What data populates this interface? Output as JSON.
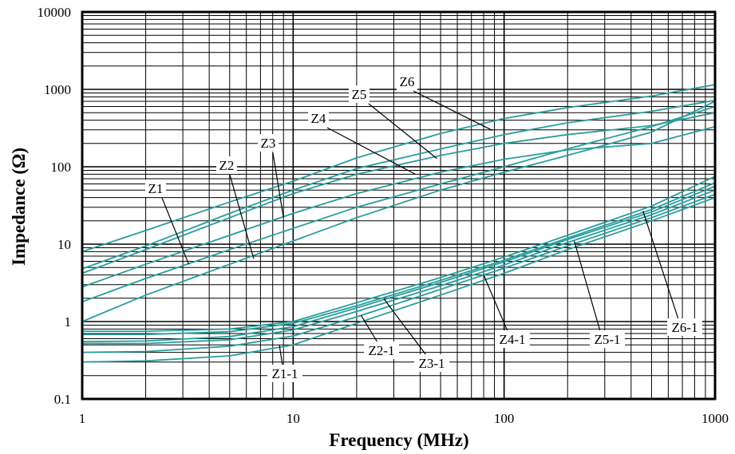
{
  "chart_data": {
    "type": "line",
    "title": "",
    "xlabel": "Frequency (MHz)",
    "ylabel": "Impedance (Ω)",
    "x_scale": "log",
    "y_scale": "log",
    "xlim": [
      1,
      1000
    ],
    "ylim": [
      0.1,
      10000
    ],
    "x_ticks": [
      "1",
      "10",
      "100",
      "1000"
    ],
    "y_ticks": [
      "0.1",
      "1",
      "10",
      "100",
      "1000",
      "10000"
    ],
    "grid": true,
    "line_color": "#2a9d9d",
    "series": [
      {
        "name": "Z1",
        "x": [
          1,
          2,
          5,
          10,
          20,
          50,
          100,
          200,
          500,
          1000
        ],
        "y": [
          1.0,
          2.2,
          5.5,
          11,
          22,
          50,
          85,
          140,
          280,
          700
        ]
      },
      {
        "name": "Z2",
        "x": [
          1,
          2,
          5,
          10,
          20,
          50,
          100,
          200,
          500,
          1000
        ],
        "y": [
          1.8,
          3.6,
          8.5,
          16,
          30,
          60,
          100,
          170,
          330,
          600
        ]
      },
      {
        "name": "Z3",
        "x": [
          1,
          2,
          5,
          10,
          20,
          50,
          100,
          200,
          500,
          1000
        ],
        "y": [
          2.8,
          5.5,
          13,
          25,
          45,
          85,
          125,
          165,
          200,
          330
        ]
      },
      {
        "name": "Z4",
        "x": [
          1,
          2,
          5,
          10,
          20,
          50,
          100,
          200,
          500,
          1000
        ],
        "y": [
          4.2,
          8.5,
          22,
          45,
          80,
          140,
          200,
          260,
          340,
          500
        ]
      },
      {
        "name": "Z5",
        "x": [
          1,
          2,
          5,
          10,
          20,
          50,
          100,
          200,
          500,
          1000
        ],
        "y": [
          4.8,
          9.5,
          25,
          50,
          95,
          170,
          260,
          370,
          520,
          720
        ]
      },
      {
        "name": "Z6",
        "x": [
          1,
          2,
          5,
          10,
          20,
          50,
          100,
          200,
          500,
          1000
        ],
        "y": [
          8.0,
          15,
          35,
          65,
          130,
          270,
          420,
          580,
          820,
          1150
        ]
      },
      {
        "name": "Z1-1",
        "x": [
          1,
          2,
          5,
          10,
          20,
          50,
          100,
          200,
          500,
          1000
        ],
        "y": [
          0.3,
          0.31,
          0.36,
          0.5,
          0.95,
          2.2,
          4.2,
          8.5,
          20,
          40
        ]
      },
      {
        "name": "Z2-1",
        "x": [
          1,
          2,
          5,
          10,
          20,
          50,
          100,
          200,
          500,
          1000
        ],
        "y": [
          0.4,
          0.41,
          0.48,
          0.65,
          1.15,
          2.6,
          4.9,
          9.5,
          22,
          44
        ]
      },
      {
        "name": "Z3-1",
        "x": [
          1,
          2,
          5,
          10,
          20,
          50,
          100,
          200,
          500,
          1000
        ],
        "y": [
          0.52,
          0.52,
          0.58,
          0.78,
          1.35,
          2.9,
          5.4,
          10.5,
          24,
          50
        ]
      },
      {
        "name": "Z4-1",
        "x": [
          1,
          2,
          5,
          10,
          20,
          50,
          100,
          200,
          500,
          1000
        ],
        "y": [
          0.55,
          0.56,
          0.64,
          0.86,
          1.5,
          3.2,
          5.9,
          11.5,
          26,
          56
        ]
      },
      {
        "name": "Z5-1",
        "x": [
          1,
          2,
          5,
          10,
          20,
          50,
          100,
          200,
          500,
          1000
        ],
        "y": [
          0.68,
          0.68,
          0.74,
          0.95,
          1.6,
          3.4,
          6.2,
          12,
          28,
          62
        ]
      },
      {
        "name": "Z6-1",
        "x": [
          1,
          2,
          5,
          10,
          20,
          50,
          100,
          200,
          500,
          1000
        ],
        "y": [
          0.75,
          0.75,
          0.8,
          1.0,
          1.75,
          3.7,
          6.8,
          13,
          31,
          75
        ]
      }
    ],
    "annotations": [
      {
        "label": "Z1",
        "point": [
          3.2,
          5.5
        ]
      },
      {
        "label": "Z2",
        "point": [
          6.5,
          6.5
        ]
      },
      {
        "label": "Z3",
        "point": [
          9.0,
          22
        ]
      },
      {
        "label": "Z4",
        "point": [
          38,
          80
        ]
      },
      {
        "label": "Z5",
        "point": [
          48,
          128
        ]
      },
      {
        "label": "Z6",
        "point": [
          88,
          295
        ]
      },
      {
        "label": "Z1-1",
        "point": [
          8.6,
          0.5
        ]
      },
      {
        "label": "Z2-1",
        "point": [
          21,
          1.2
        ]
      },
      {
        "label": "Z3-1",
        "point": [
          27,
          1.95
        ]
      },
      {
        "label": "Z4-1",
        "point": [
          80,
          4.0
        ]
      },
      {
        "label": "Z5-1",
        "point": [
          215,
          11
        ]
      },
      {
        "label": "Z6-1",
        "point": [
          455,
          27
        ]
      }
    ]
  }
}
